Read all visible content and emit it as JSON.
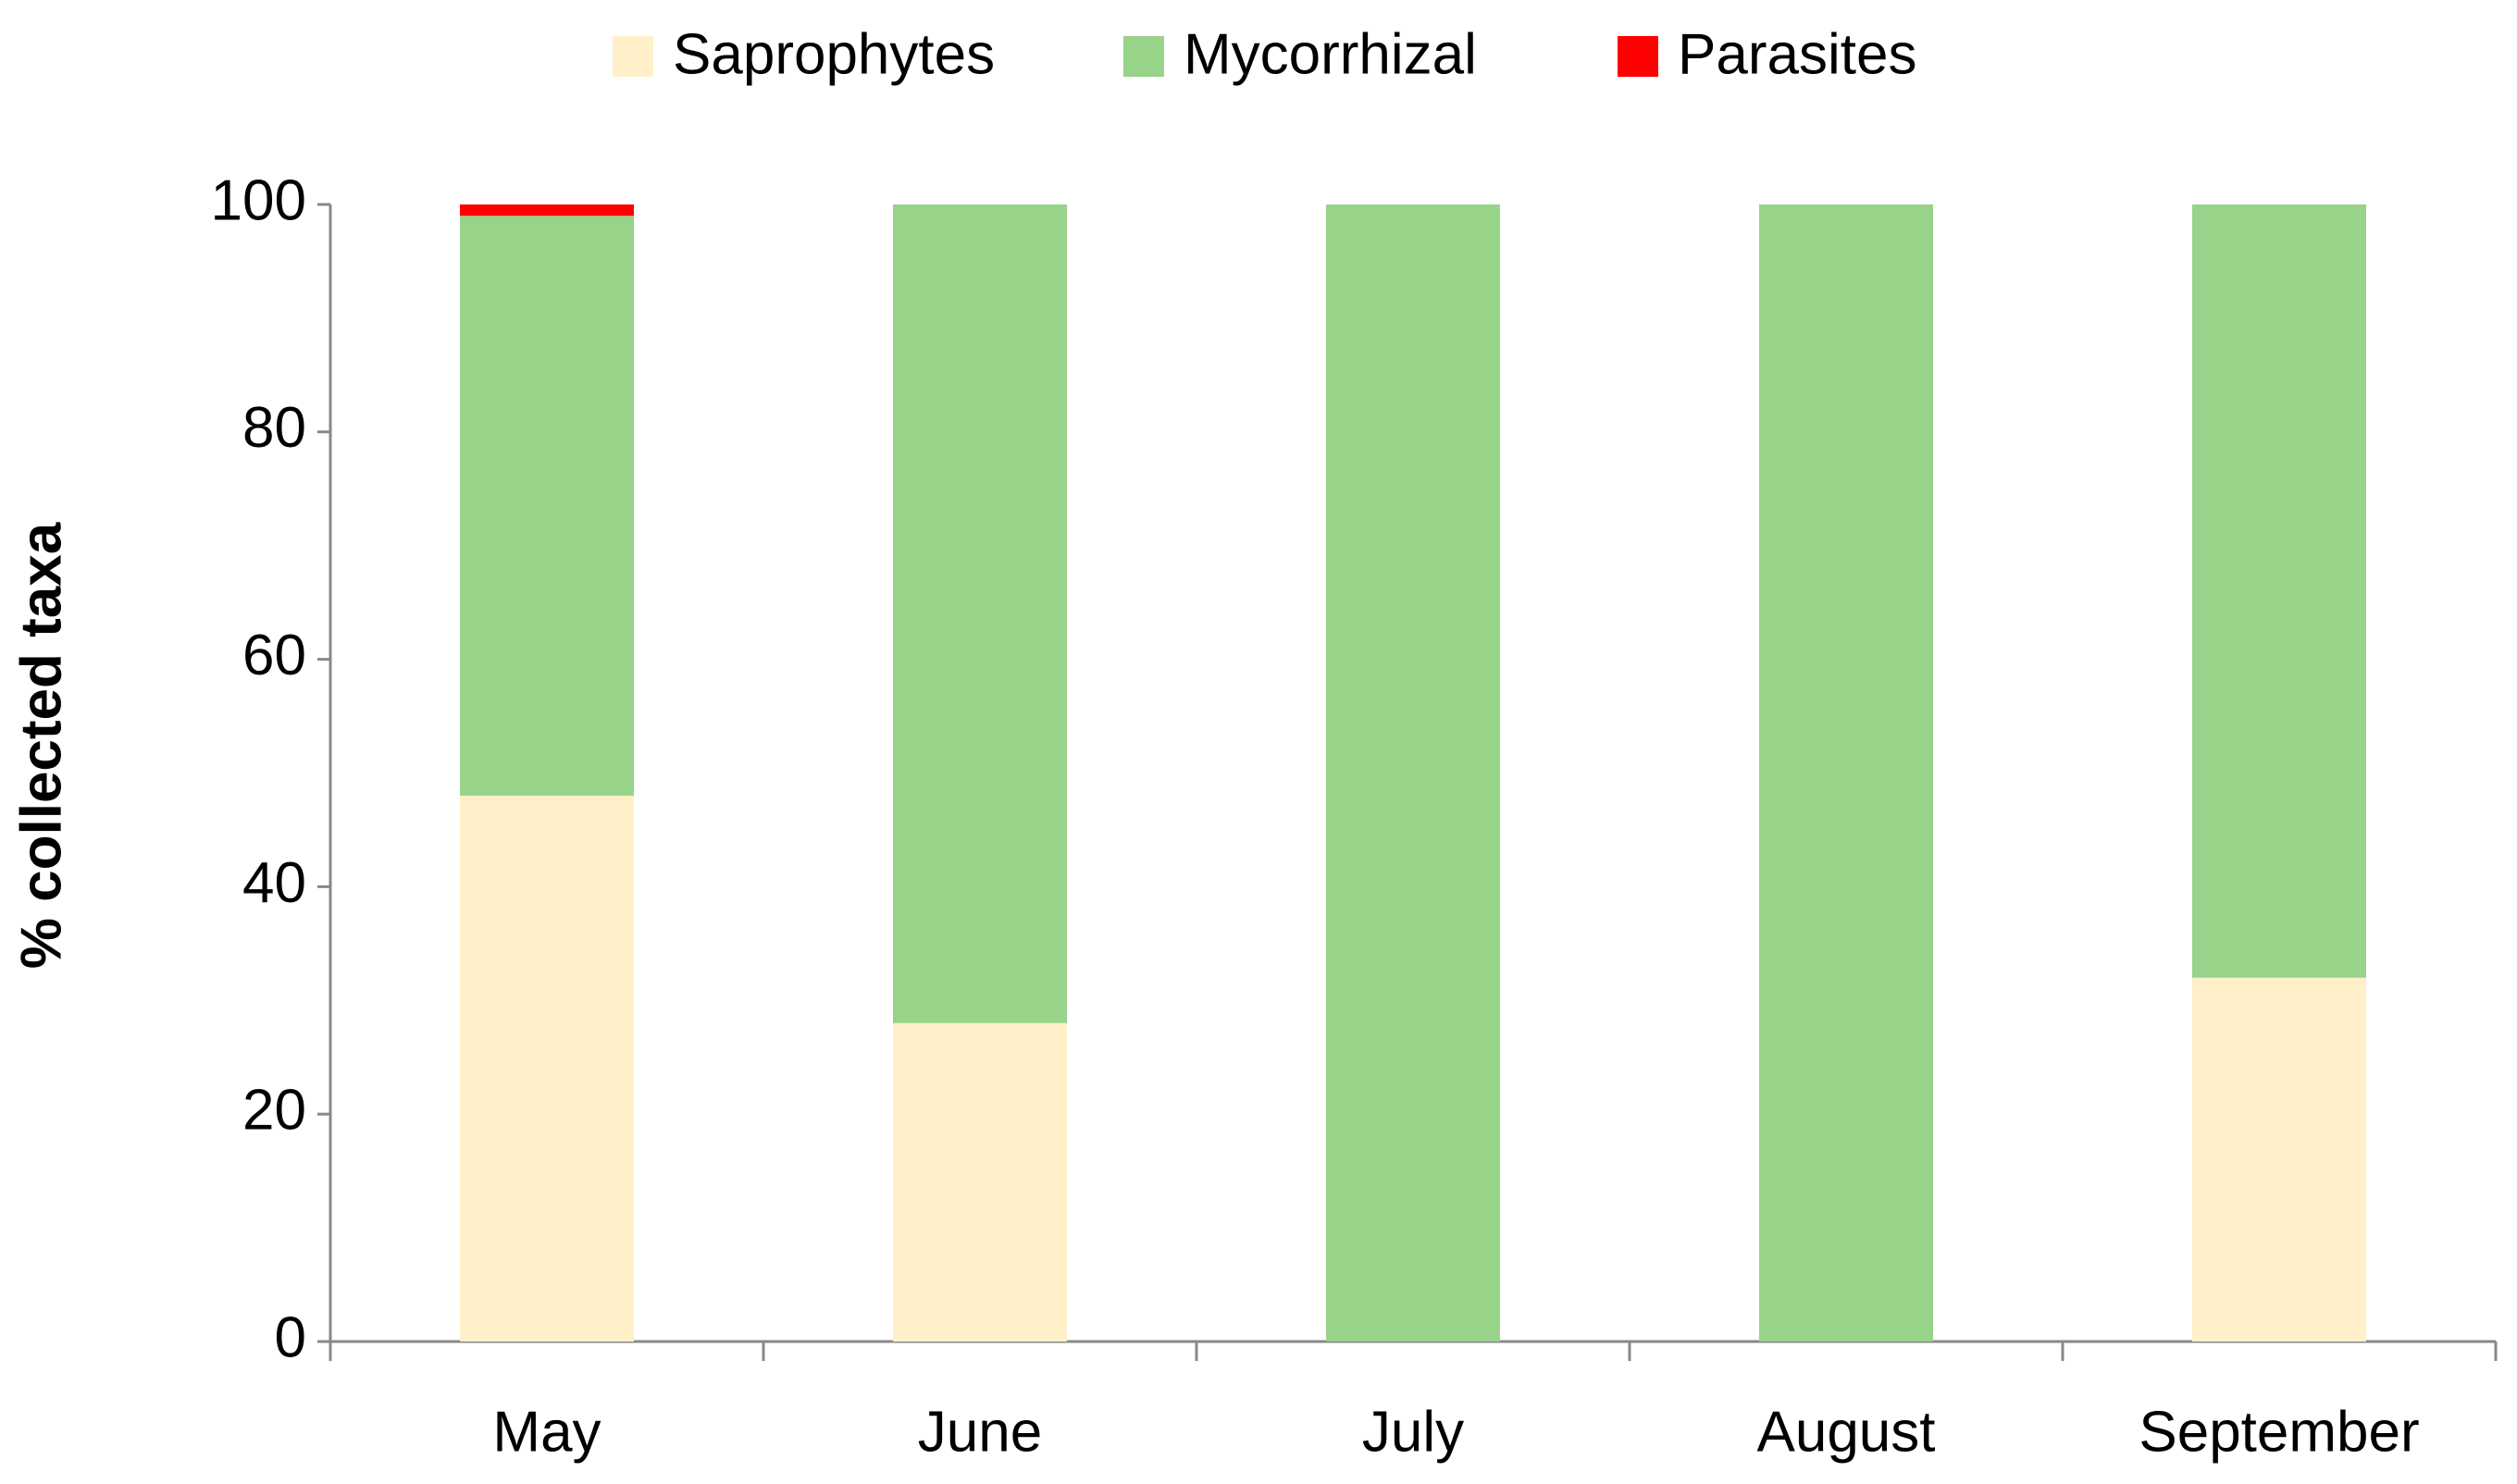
{
  "chart_data": {
    "type": "stacked_bar",
    "y_axis_label": "% collected taxa",
    "categories": [
      "May",
      "June",
      "July",
      "August",
      "September"
    ],
    "series": [
      {
        "name": "Saprophytes",
        "color": "#fff0c9",
        "values": [
          48,
          28,
          0,
          0,
          32
        ]
      },
      {
        "name": "Mycorrhizal",
        "color": "#98d38a",
        "values": [
          51,
          72,
          100,
          100,
          68
        ]
      },
      {
        "name": "Parasites",
        "color": "#ff0000",
        "values": [
          1,
          0,
          0,
          0,
          0
        ]
      }
    ],
    "ylim": [
      0,
      100
    ],
    "yticks": [
      0,
      20,
      40,
      60,
      80,
      100
    ],
    "grid": false,
    "legend": "top"
  }
}
